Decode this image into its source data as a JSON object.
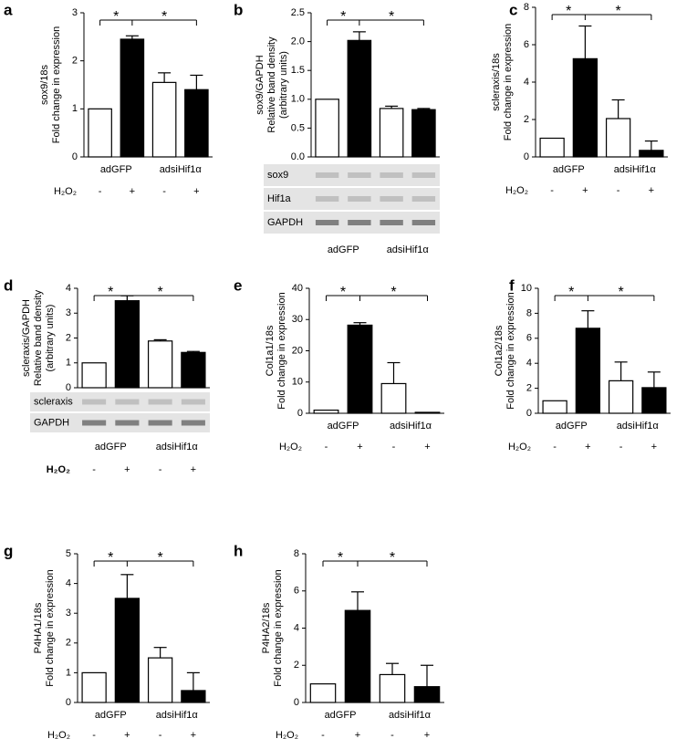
{
  "chart_data": [
    {
      "type": "bar",
      "panel": "a",
      "ylabel": [
        "sox9/18s",
        "Fold change in expression"
      ],
      "ylim": [
        0,
        3
      ],
      "yticks": [
        0,
        1,
        2,
        3
      ],
      "values": [
        1,
        2.45,
        1.55,
        1.4
      ],
      "errors": [
        null,
        0.07,
        0.2,
        0.3
      ],
      "colors": [
        "#ffffff",
        "#000000",
        "#ffffff",
        "#000000"
      ],
      "groups": [
        "adGFP",
        "adsiHif1α"
      ],
      "treatment_label": "H₂O₂",
      "treatment": [
        "-",
        "+",
        "-",
        "+"
      ],
      "significance": [
        "*",
        "*"
      ]
    },
    {
      "type": "bar",
      "panel": "b",
      "ylabel": [
        "sox9/GAPDH",
        "Relative band density",
        "(arbitrary units)"
      ],
      "ylim": [
        0,
        2.5
      ],
      "yticks": [
        {
          "value": 0,
          "label": "0.0"
        },
        {
          "value": 0.5,
          "label": "0.5"
        },
        {
          "value": 1,
          "label": "1.0"
        },
        {
          "value": 1.5,
          "label": "1.5"
        },
        {
          "value": 2,
          "label": "2.0"
        },
        {
          "value": 2.5,
          "label": "2.5"
        }
      ],
      "values": [
        1,
        2.02,
        0.84,
        0.82
      ],
      "errors": [
        null,
        0.15,
        0.04,
        0.02
      ],
      "colors": [
        "#ffffff",
        "#000000",
        "#ffffff",
        "#000000"
      ],
      "blot_labels": [
        "sox9",
        "Hif1a",
        "GAPDH"
      ],
      "groups": [
        "adGFP",
        "adsiHif1α"
      ],
      "significance": [
        "*",
        "*"
      ]
    },
    {
      "type": "bar",
      "panel": "c",
      "ylabel": [
        "scleraxis/18s",
        "Fold change in expression"
      ],
      "ylim": [
        0,
        8
      ],
      "yticks": [
        0,
        2,
        4,
        6,
        8
      ],
      "values": [
        1,
        5.25,
        2.05,
        0.35
      ],
      "errors": [
        null,
        1.75,
        1.0,
        0.5
      ],
      "colors": [
        "#ffffff",
        "#000000",
        "#ffffff",
        "#000000"
      ],
      "groups": [
        "adGFP",
        "adsiHif1α"
      ],
      "treatment_label": "H₂O₂",
      "treatment": [
        "-",
        "+",
        "-",
        "+"
      ],
      "significance": [
        "*",
        "*"
      ]
    },
    {
      "type": "bar",
      "panel": "d",
      "ylabel": [
        "scleraxis/GAPDH",
        "Relative band density",
        "(arbitrary units)"
      ],
      "ylim": [
        0,
        4
      ],
      "yticks": [
        0,
        1,
        2,
        3,
        4
      ],
      "values": [
        1,
        3.5,
        1.88,
        1.42
      ],
      "errors": [
        null,
        0.2,
        0.05,
        0.04
      ],
      "colors": [
        "#ffffff",
        "#000000",
        "#ffffff",
        "#000000"
      ],
      "blot_labels": [
        "scleraxis",
        "GAPDH"
      ],
      "groups": [
        "adGFP",
        "adsiHif1α"
      ],
      "treatment_label": "H₂O₂",
      "treatment": [
        "-",
        "+",
        "-",
        "+"
      ],
      "significance": [
        "*",
        "*"
      ]
    },
    {
      "type": "bar",
      "panel": "e",
      "ylabel": [
        "Col1a1/18s",
        "Fold change in expression"
      ],
      "ylim": [
        0,
        40
      ],
      "yticks": [
        0,
        10,
        20,
        30,
        40
      ],
      "values": [
        1,
        28.2,
        9.5,
        0.3
      ],
      "errors": [
        null,
        0.8,
        6.7,
        null
      ],
      "colors": [
        "#ffffff",
        "#000000",
        "#ffffff",
        "#000000"
      ],
      "groups": [
        "adGFP",
        "adsiHif1α"
      ],
      "treatment_label": "H₂O₂",
      "treatment": [
        "-",
        "+",
        "-",
        "+"
      ],
      "significance": [
        "*",
        "*"
      ]
    },
    {
      "type": "bar",
      "panel": "f",
      "ylabel": [
        "Col1a2/18s",
        "Fold change in expression"
      ],
      "ylim": [
        0,
        10
      ],
      "yticks": [
        0,
        2,
        4,
        6,
        8,
        10
      ],
      "values": [
        1,
        6.8,
        2.6,
        2.05
      ],
      "errors": [
        null,
        1.4,
        1.5,
        1.25
      ],
      "colors": [
        "#ffffff",
        "#000000",
        "#ffffff",
        "#000000"
      ],
      "groups": [
        "adGFP",
        "adsiHif1α"
      ],
      "treatment_label": "H₂O₂",
      "treatment": [
        "-",
        "+",
        "-",
        "+"
      ],
      "significance": [
        "*",
        "*"
      ]
    },
    {
      "type": "bar",
      "panel": "g",
      "ylabel": [
        "P4HA1/18s",
        "Fold change in expression"
      ],
      "ylim": [
        0,
        5
      ],
      "yticks": [
        0,
        1,
        2,
        3,
        4,
        5
      ],
      "values": [
        1,
        3.5,
        1.5,
        0.4
      ],
      "errors": [
        null,
        0.8,
        0.35,
        0.6
      ],
      "colors": [
        "#ffffff",
        "#000000",
        "#ffffff",
        "#000000"
      ],
      "groups": [
        "adGFP",
        "adsiHif1α"
      ],
      "treatment_label": "H₂O₂",
      "treatment": [
        "-",
        "+",
        "-",
        "+"
      ],
      "significance": [
        "*",
        "*"
      ]
    },
    {
      "type": "bar",
      "panel": "h",
      "ylabel": [
        "P4HA2/18s",
        "Fold change in expression"
      ],
      "ylim": [
        0,
        8
      ],
      "yticks": [
        0,
        2,
        4,
        6,
        8
      ],
      "values": [
        1,
        4.95,
        1.5,
        0.85
      ],
      "errors": [
        null,
        1.0,
        0.6,
        1.15
      ],
      "colors": [
        "#ffffff",
        "#000000",
        "#ffffff",
        "#000000"
      ],
      "groups": [
        "adGFP",
        "adsiHif1α"
      ],
      "treatment_label": "H₂O₂",
      "treatment": [
        "-",
        "+",
        "-",
        "+"
      ],
      "significance": [
        "*",
        "*"
      ]
    }
  ]
}
